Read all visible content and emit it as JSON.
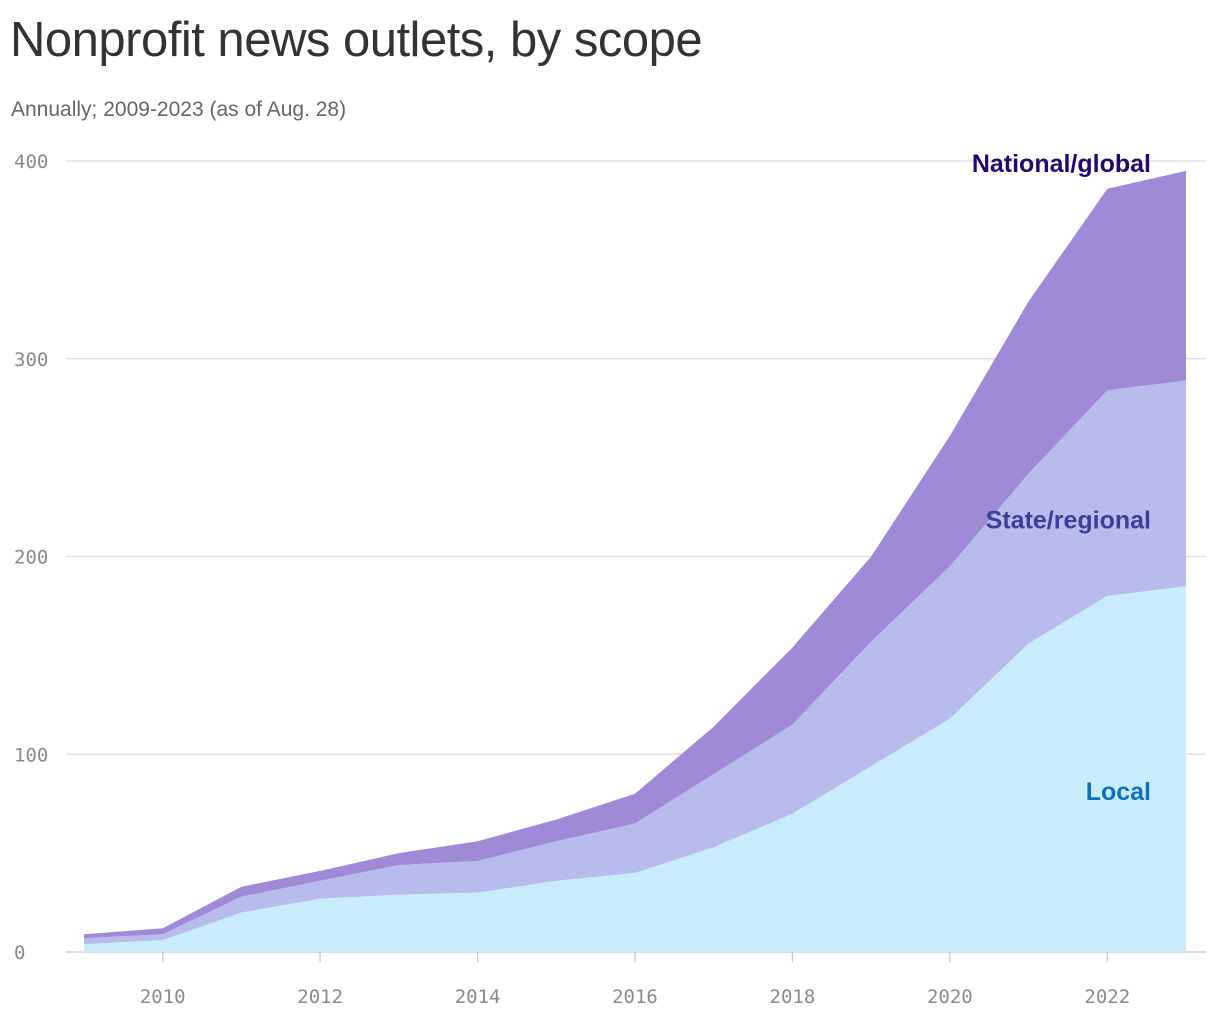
{
  "title": "Nonprofit news outlets, by scope",
  "subtitle": "Annually; 2009-2023 (as of Aug. 28)",
  "chart_data": {
    "type": "area",
    "stacked": true,
    "x": [
      2009,
      2010,
      2011,
      2012,
      2013,
      2014,
      2015,
      2016,
      2017,
      2018,
      2019,
      2020,
      2021,
      2022,
      2023
    ],
    "series": [
      {
        "name": "Local",
        "color": "#c9ecfc",
        "label_color": "#1070c0",
        "values": [
          4,
          6,
          20,
          27,
          29,
          30,
          36,
          40,
          53,
          70,
          94,
          118,
          156,
          180,
          185
        ]
      },
      {
        "name": "State/regional",
        "color": "#b8bcec",
        "label_color": "#3a3f9a",
        "values": [
          3,
          3,
          8,
          9,
          15,
          16,
          20,
          25,
          37,
          45,
          63,
          77,
          86,
          104,
          104
        ]
      },
      {
        "name": "National/global",
        "color": "#a08ad8",
        "label_color": "#240870",
        "values": [
          2,
          3,
          5,
          5,
          6,
          10,
          11,
          15,
          24,
          39,
          43,
          66,
          87,
          102,
          106
        ]
      }
    ],
    "ylim": [
      0,
      400
    ],
    "yticks": [
      0,
      100,
      200,
      300,
      400
    ],
    "xticks": [
      2010,
      2012,
      2014,
      2016,
      2018,
      2020,
      2022
    ],
    "grid": true
  }
}
